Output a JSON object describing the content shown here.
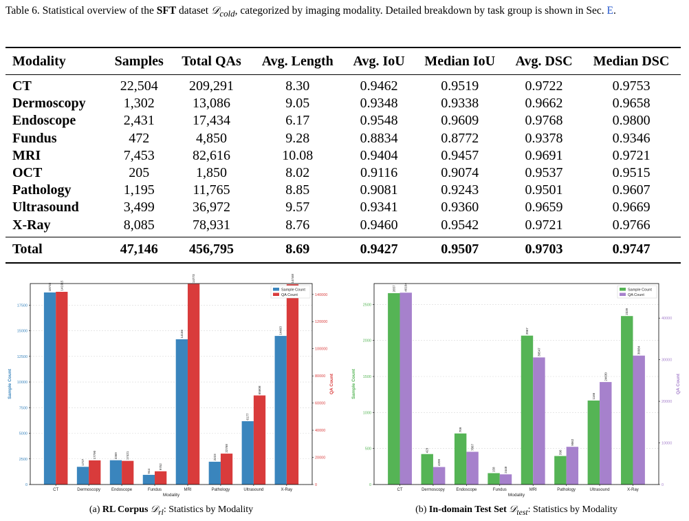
{
  "caption": {
    "label": "Table 6.",
    "text_a": " Statistical overview of the ",
    "bold": "SFT",
    "text_b": " dataset ",
    "math": "𝒟",
    "math_sub": "cold",
    "text_c": ", categorized by imaging modality. Detailed breakdown by task group is shown in Sec. ",
    "link": "E",
    "end": "."
  },
  "table": {
    "headers": [
      "Modality",
      "Samples",
      "Total QAs",
      "Avg. Length",
      "Avg. IoU",
      "Median IoU",
      "Avg. DSC",
      "Median DSC"
    ],
    "rows": [
      [
        "CT",
        "22,504",
        "209,291",
        "8.30",
        "0.9462",
        "0.9519",
        "0.9722",
        "0.9753"
      ],
      [
        "Dermoscopy",
        "1,302",
        "13,086",
        "9.05",
        "0.9348",
        "0.9338",
        "0.9662",
        "0.9658"
      ],
      [
        "Endoscope",
        "2,431",
        "17,434",
        "6.17",
        "0.9548",
        "0.9609",
        "0.9768",
        "0.9800"
      ],
      [
        "Fundus",
        "472",
        "4,850",
        "9.28",
        "0.8834",
        "0.8772",
        "0.9378",
        "0.9346"
      ],
      [
        "MRI",
        "7,453",
        "82,616",
        "10.08",
        "0.9404",
        "0.9457",
        "0.9691",
        "0.9721"
      ],
      [
        "OCT",
        "205",
        "1,850",
        "8.02",
        "0.9116",
        "0.9074",
        "0.9537",
        "0.9515"
      ],
      [
        "Pathology",
        "1,195",
        "11,765",
        "8.85",
        "0.9081",
        "0.9243",
        "0.9501",
        "0.9607"
      ],
      [
        "Ultrasound",
        "3,499",
        "36,972",
        "9.57",
        "0.9341",
        "0.9360",
        "0.9659",
        "0.9669"
      ],
      [
        "X-Ray",
        "8,085",
        "78,931",
        "8.76",
        "0.9460",
        "0.9542",
        "0.9721",
        "0.9766"
      ]
    ],
    "total": [
      "Total",
      "47,146",
      "456,795",
      "8.69",
      "0.9427",
      "0.9507",
      "0.9703",
      "0.9747"
    ]
  },
  "chart_data": [
    {
      "type": "bar",
      "categories": [
        "CT",
        "Dermoscopy",
        "Endoscope",
        "Fundus",
        "MRI",
        "Pathology",
        "Ultrasound",
        "X-Ray"
      ],
      "series": [
        {
          "name": "Sample Count",
          "axis": "left",
          "color": "#3a85bd",
          "values": [
            18733,
            1727,
            2369,
            944,
            14166,
            2223,
            6177,
            14493
          ]
        },
        {
          "name": "QA Count",
          "axis": "right",
          "color": "#d93b3b",
          "values": [
            141915,
            17790,
            17421,
            9752,
            147733,
            22768,
            65608,
            147460
          ]
        }
      ],
      "xlabel": "Modality",
      "ylabel": "Sample Count",
      "ylabel_right": "QA Count",
      "ylim": [
        0,
        19600
      ],
      "ylim_right": [
        0,
        148000
      ],
      "yticks": [
        0,
        2500,
        5000,
        7500,
        10000,
        12500,
        15000,
        17500
      ],
      "yticks_right": [
        0,
        20000,
        40000,
        60000,
        80000,
        100000,
        120000,
        140000
      ],
      "ylabel_color": "#3a85bd",
      "ylabel_right_color": "#d93b3b",
      "legend": "top-right",
      "grid": true
    },
    {
      "type": "bar",
      "categories": [
        "CT",
        "Dermoscopy",
        "Endoscope",
        "Fundus",
        "MRI",
        "Pathology",
        "Ultrasound",
        "X-Ray"
      ],
      "series": [
        {
          "name": "Sample Count",
          "axis": "left",
          "color": "#55b455",
          "values": [
            2657,
            423,
            709,
            158,
            2067,
            396,
            1166,
            2339
          ]
        },
        {
          "name": "QA Count",
          "axis": "right",
          "color": "#a681cc",
          "values": [
            46104,
            4209,
            7867,
            2448,
            30547,
            9062,
            24630,
            30984
          ]
        }
      ],
      "xlabel": "Modality",
      "ylabel": "Sample Count",
      "ylabel_right": "QA Count",
      "ylim": [
        0,
        2790
      ],
      "ylim_right": [
        0,
        48300
      ],
      "yticks": [
        0,
        500,
        1000,
        1500,
        2000,
        2500
      ],
      "yticks_right": [
        0,
        10000,
        20000,
        30000,
        40000
      ],
      "ylabel_color": "#55b455",
      "ylabel_right_color": "#a681cc",
      "legend": "top-right",
      "grid": true
    }
  ],
  "subcaptions": {
    "a": {
      "label": "(a) ",
      "bold": "RL Corpus ",
      "math": "𝒟",
      "math_sub": "rl",
      "rest": ": Statistics by Modality"
    },
    "b": {
      "label": "(b) ",
      "bold": "In-domain Test Set ",
      "math": "𝒟",
      "math_sub": "test",
      "rest": ": Statistics by Modality"
    }
  }
}
